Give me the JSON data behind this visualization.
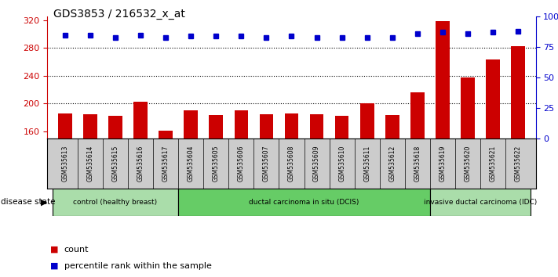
{
  "title": "GDS3853 / 216532_x_at",
  "samples": [
    "GSM535613",
    "GSM535614",
    "GSM535615",
    "GSM535616",
    "GSM535617",
    "GSM535604",
    "GSM535605",
    "GSM535606",
    "GSM535607",
    "GSM535608",
    "GSM535609",
    "GSM535610",
    "GSM535611",
    "GSM535612",
    "GSM535618",
    "GSM535619",
    "GSM535620",
    "GSM535621",
    "GSM535622"
  ],
  "counts": [
    186,
    185,
    183,
    203,
    161,
    191,
    184,
    191,
    185,
    186,
    185,
    183,
    201,
    184,
    216,
    318,
    238,
    263,
    283
  ],
  "percentiles": [
    85,
    85,
    83,
    85,
    83,
    84,
    84,
    84,
    83,
    84,
    83,
    83,
    83,
    83,
    86,
    87,
    86,
    87,
    88
  ],
  "ylim_left": [
    150,
    325
  ],
  "yticks_left": [
    160,
    200,
    240,
    280,
    320
  ],
  "ylim_right": [
    0,
    100
  ],
  "yticks_right": [
    0,
    25,
    50,
    75,
    100
  ],
  "bar_color": "#cc0000",
  "dot_color": "#0000cc",
  "bar_width": 0.55,
  "bg_color": "#ffffff",
  "label_count": "count",
  "label_pct": "percentile rank within the sample",
  "disease_state_label": "disease state",
  "groups": [
    {
      "label": "control (healthy breast)",
      "start": 0,
      "end": 4,
      "color": "#aaddaa"
    },
    {
      "label": "ductal carcinoma in situ (DCIS)",
      "start": 5,
      "end": 14,
      "color": "#66cc66"
    },
    {
      "label": "invasive ductal carcinoma (IDC)",
      "start": 15,
      "end": 18,
      "color": "#aaddaa"
    }
  ],
  "tick_bg_color": "#cccccc",
  "group_border_color": "#007700",
  "dotted_gridlines": [
    200,
    240,
    280
  ]
}
